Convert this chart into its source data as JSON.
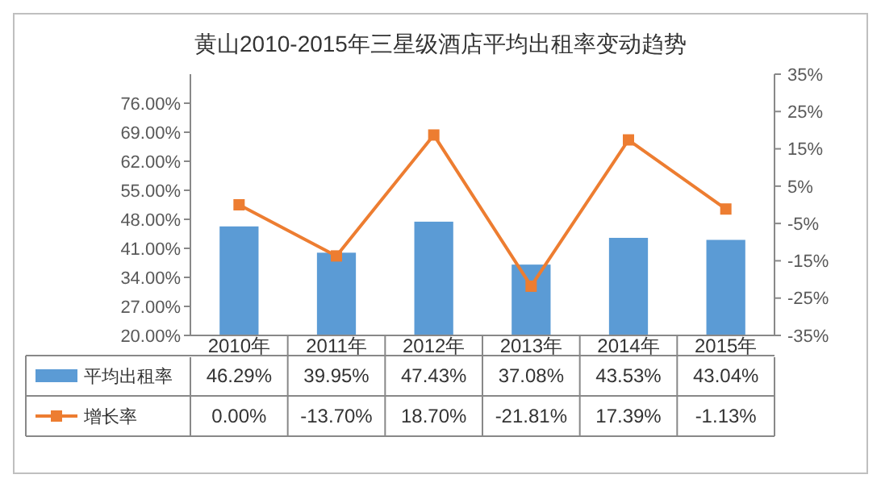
{
  "chart_data": {
    "type": "bar",
    "title": "黄山2010-2015年三星级酒店平均出租率变动趋势",
    "categories": [
      "2010年",
      "2011年",
      "2012年",
      "2013年",
      "2014年",
      "2015年"
    ],
    "series": [
      {
        "name": "平均出租率",
        "color": "#5b9bd5",
        "values": [
          46.29,
          39.95,
          47.43,
          37.08,
          43.53,
          43.04
        ],
        "value_labels": [
          "46.29%",
          "39.95%",
          "47.43%",
          "37.08%",
          "43.53%",
          "43.04%"
        ]
      },
      {
        "name": "增长率",
        "type": "line",
        "axis": "y2",
        "color": "#ed7d31",
        "marker": "square",
        "values": [
          0,
          -13.7,
          18.7,
          -21.81,
          17.39,
          -1.13
        ],
        "value_labels": [
          "0.00%",
          "-13.70%",
          "18.70%",
          "-21.81%",
          "17.39%",
          "-1.13%"
        ]
      }
    ],
    "ylim": [
      20,
      83
    ],
    "yticks": [
      {
        "value": 20,
        "label": "20.00%"
      },
      {
        "value": 27,
        "label": "27.00%"
      },
      {
        "value": 34,
        "label": "34.00%"
      },
      {
        "value": 41,
        "label": "41.00%"
      },
      {
        "value": 48,
        "label": "48.00%"
      },
      {
        "value": 55,
        "label": "55.00%"
      },
      {
        "value": 62,
        "label": "62.00%"
      },
      {
        "value": 69,
        "label": "69.00%"
      },
      {
        "value": 76,
        "label": "76.00%"
      }
    ],
    "y2lim": [
      -35,
      35
    ],
    "y2ticks": [
      {
        "value": -35,
        "label": "-35%"
      },
      {
        "value": -25,
        "label": "-25%"
      },
      {
        "value": -15,
        "label": "-15%"
      },
      {
        "value": -5,
        "label": "-5%"
      },
      {
        "value": 5,
        "label": "5%"
      },
      {
        "value": 15,
        "label": "15%"
      },
      {
        "value": 25,
        "label": "25%"
      },
      {
        "value": 35,
        "label": "35%"
      }
    ],
    "legend": "bottom",
    "grid": false
  }
}
